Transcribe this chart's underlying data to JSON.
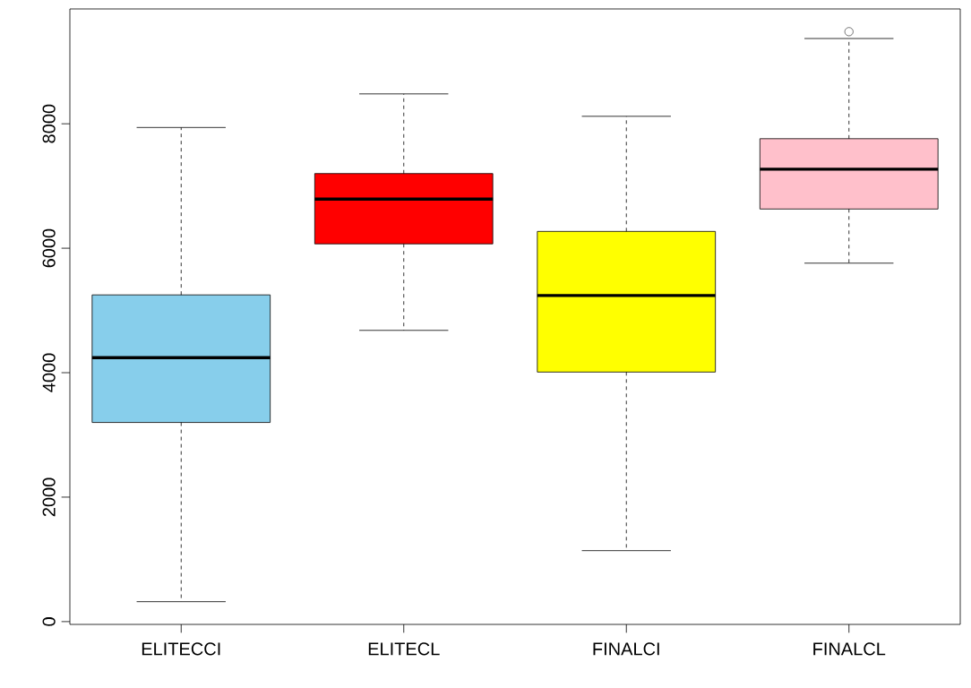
{
  "chart_data": {
    "type": "box",
    "categories": [
      "ELITECCI",
      "ELITECL",
      "FINALCI",
      "FINALCL"
    ],
    "colors": [
      "#87ceeb",
      "#ff0000",
      "#ffff00",
      "#ffc0cb"
    ],
    "boxes": [
      {
        "low": 320,
        "q1": 3200,
        "median": 4240,
        "q3": 5250,
        "high": 7940
      },
      {
        "low": 4680,
        "q1": 6070,
        "median": 6790,
        "q3": 7200,
        "high": 8480
      },
      {
        "low": 1140,
        "q1": 4010,
        "median": 5240,
        "q3": 6270,
        "high": 8120
      },
      {
        "low": 5760,
        "q1": 6630,
        "median": 7270,
        "q3": 7760,
        "high": 9370,
        "outliers": [
          9480
        ]
      }
    ],
    "ylim": [
      -45,
      9845
    ],
    "yticks": [
      0,
      2000,
      4000,
      6000,
      8000
    ]
  }
}
